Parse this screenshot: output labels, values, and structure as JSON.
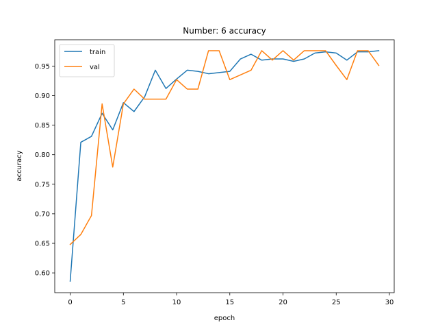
{
  "chart_data": {
    "type": "line",
    "title": "Number: 6 accuracy",
    "xlabel": "epoch",
    "ylabel": "accuracy",
    "xlim": [
      -1.45,
      30.45
    ],
    "ylim": [
      0.5665,
      0.9945
    ],
    "xticks": [
      0,
      5,
      10,
      15,
      20,
      25,
      30
    ],
    "yticks": [
      0.6,
      0.65,
      0.7,
      0.75,
      0.8,
      0.85,
      0.9,
      0.95
    ],
    "ytick_labels": [
      "0.60",
      "0.65",
      "0.70",
      "0.75",
      "0.80",
      "0.85",
      "0.90",
      "0.95"
    ],
    "grid": false,
    "legend_position": "upper left",
    "x": [
      0,
      1,
      2,
      3,
      4,
      5,
      6,
      7,
      8,
      9,
      10,
      11,
      12,
      13,
      14,
      15,
      16,
      17,
      18,
      19,
      20,
      21,
      22,
      23,
      24,
      25,
      26,
      27,
      28,
      29
    ],
    "series": [
      {
        "name": "train",
        "color": "#1f77b4",
        "values": [
          0.586,
          0.821,
          0.831,
          0.87,
          0.842,
          0.888,
          0.873,
          0.898,
          0.943,
          0.912,
          0.928,
          0.943,
          0.941,
          0.937,
          0.939,
          0.941,
          0.962,
          0.97,
          0.96,
          0.962,
          0.962,
          0.958,
          0.962,
          0.972,
          0.974,
          0.972,
          0.96,
          0.974,
          0.974,
          0.976
        ]
      },
      {
        "name": "val",
        "color": "#ff7f0e",
        "values": [
          0.648,
          0.665,
          0.697,
          0.886,
          0.779,
          0.886,
          0.911,
          0.894,
          0.894,
          0.894,
          0.927,
          0.911,
          0.911,
          0.976,
          0.976,
          0.927,
          0.935,
          0.943,
          0.976,
          0.96,
          0.976,
          0.96,
          0.976,
          0.976,
          0.976,
          0.951,
          0.927,
          0.976,
          0.976,
          0.951
        ]
      }
    ]
  }
}
